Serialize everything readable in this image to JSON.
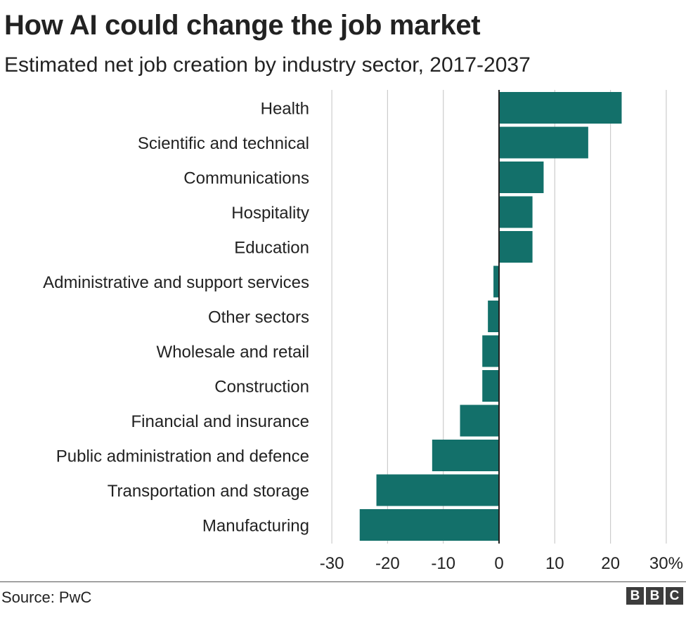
{
  "colors": {
    "bar": "#13706a",
    "grid": "#cccccc",
    "zero_line": "#222222",
    "text": "#222222"
  },
  "chart_data": {
    "type": "bar",
    "orientation": "horizontal",
    "title": "How AI could change the job market",
    "subtitle": "Estimated net job creation by industry sector, 2017-2037",
    "categories": [
      "Health",
      "Scientific and technical",
      "Communications",
      "Hospitality",
      "Education",
      "Administrative and support services",
      "Other sectors",
      "Wholesale and retail",
      "Construction",
      "Financial and insurance",
      "Public administration and defence",
      "Transportation and storage",
      "Manufacturing"
    ],
    "values": [
      22,
      16,
      8,
      6,
      6,
      -1,
      -2,
      -3,
      -3,
      -7,
      -12,
      -22,
      -25
    ],
    "xlim": [
      -30,
      30
    ],
    "x_ticks": [
      "-30",
      "-20",
      "-10",
      "0",
      "10",
      "20",
      "30%"
    ],
    "unit": "%",
    "grid": true,
    "source": "Source: PwC",
    "logo": [
      "B",
      "B",
      "C"
    ]
  }
}
